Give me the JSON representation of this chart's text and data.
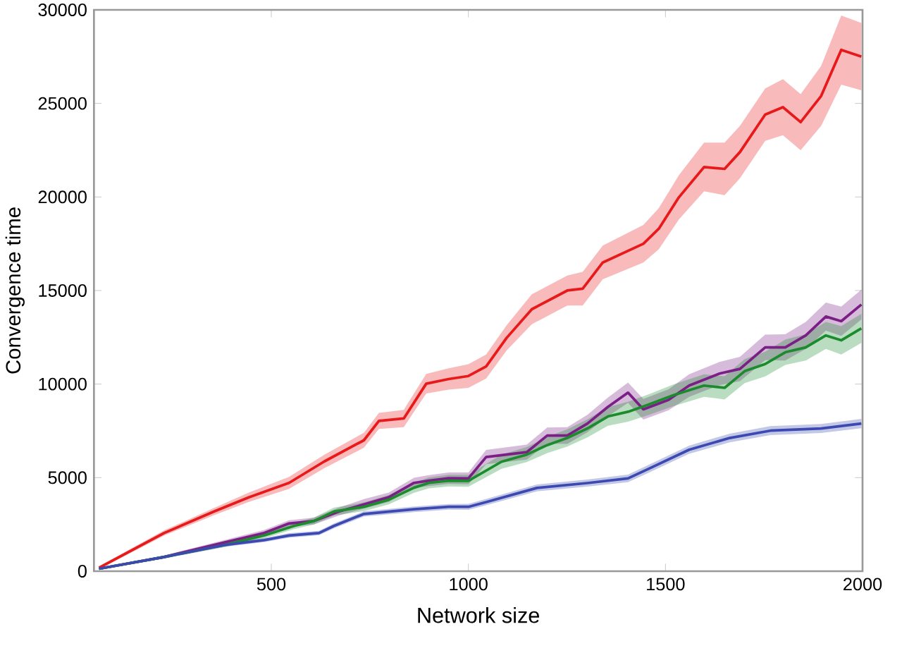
{
  "chart_data": {
    "type": "line",
    "xlabel": "Network size",
    "ylabel": "Convergence time",
    "xlim": [
      50,
      2000
    ],
    "ylim": [
      0,
      30000
    ],
    "xticks": [
      500,
      1000,
      1500,
      2000
    ],
    "yticks": [
      0,
      5000,
      10000,
      15000,
      20000,
      25000,
      30000
    ],
    "grid": false,
    "marker": "none",
    "line_style": "solid",
    "series": [
      {
        "color": "#e8191b",
        "x": [
          63,
          228,
          355,
          443,
          545,
          634,
          735,
          773,
          836,
          893,
          950,
          1000,
          1045,
          1097,
          1161,
          1251,
          1290,
          1341,
          1444,
          1483,
          1534,
          1598,
          1650,
          1689,
          1753,
          1798,
          1843,
          1895,
          1946,
          1997
        ],
        "values": [
          180,
          2040,
          3190,
          3950,
          4720,
          5860,
          7000,
          8030,
          8160,
          10020,
          10270,
          10430,
          10940,
          12470,
          14000,
          15000,
          15100,
          16500,
          17500,
          18300,
          19980,
          21600,
          21500,
          22400,
          24400,
          24800,
          24000,
          25400,
          27860,
          27500
        ],
        "lower": [
          100,
          1900,
          3000,
          3700,
          4400,
          5500,
          6600,
          7600,
          7700,
          9500,
          9700,
          9800,
          10300,
          11800,
          13200,
          14200,
          14200,
          15600,
          16500,
          17200,
          18800,
          20300,
          20100,
          21000,
          23000,
          23300,
          22500,
          23800,
          26000,
          25700
        ],
        "upper": [
          260,
          2180,
          3380,
          4200,
          5040,
          6220,
          7400,
          8460,
          8620,
          10540,
          10840,
          11060,
          11580,
          13140,
          14800,
          15800,
          16000,
          17400,
          18500,
          19400,
          21160,
          22900,
          22900,
          23800,
          25800,
          26300,
          25500,
          27000,
          29700,
          29300
        ]
      },
      {
        "color": "#7b1f86",
        "x": [
          63,
          228,
          380,
          482,
          545,
          608,
          672,
          735,
          798,
          862,
          900,
          950,
          1000,
          1045,
          1148,
          1200,
          1251,
          1302,
          1354,
          1405,
          1444,
          1508,
          1560,
          1637,
          1689,
          1753,
          1804,
          1856,
          1907,
          1946,
          1997
        ],
        "values": [
          130,
          760,
          1530,
          2040,
          2550,
          2680,
          3190,
          3570,
          3950,
          4720,
          4840,
          4970,
          4960,
          6100,
          6360,
          7250,
          7250,
          7890,
          8780,
          9540,
          8650,
          9160,
          9920,
          10560,
          10810,
          11960,
          11960,
          12600,
          13610,
          13360,
          14250
        ],
        "lower": [
          80,
          680,
          1400,
          1880,
          2380,
          2500,
          2980,
          3340,
          3700,
          4450,
          4550,
          4660,
          4640,
          5720,
          5960,
          6820,
          6800,
          7420,
          8280,
          9000,
          8100,
          8600,
          9320,
          9940,
          10160,
          11280,
          11260,
          11880,
          12860,
          12580,
          13450
        ],
        "upper": [
          180,
          840,
          1660,
          2200,
          2720,
          2860,
          3400,
          3850,
          4200,
          4990,
          5130,
          5280,
          5280,
          6480,
          6760,
          7680,
          7700,
          8360,
          9280,
          10080,
          9200,
          9720,
          10520,
          11180,
          11460,
          12640,
          12660,
          13320,
          14360,
          14140,
          15050
        ]
      },
      {
        "color": "#1c8b2e",
        "x": [
          63,
          228,
          380,
          482,
          558,
          608,
          659,
          735,
          798,
          862,
          900,
          950,
          1000,
          1084,
          1148,
          1200,
          1251,
          1302,
          1354,
          1405,
          1457,
          1521,
          1598,
          1650,
          1701,
          1753,
          1804,
          1856,
          1907,
          1946,
          1997
        ],
        "values": [
          130,
          760,
          1400,
          1910,
          2420,
          2680,
          3190,
          3440,
          3820,
          4460,
          4720,
          4840,
          4830,
          5850,
          6230,
          6740,
          7120,
          7630,
          8270,
          8520,
          8900,
          9410,
          9920,
          9800,
          10690,
          11070,
          11700,
          11960,
          12600,
          12340,
          12980
        ],
        "lower": [
          80,
          680,
          1280,
          1760,
          2250,
          2500,
          2980,
          3210,
          3570,
          4190,
          4430,
          4530,
          4510,
          5470,
          5830,
          6310,
          6660,
          7150,
          7770,
          7990,
          8350,
          8830,
          9320,
          9180,
          10050,
          10410,
          11020,
          11260,
          11880,
          11580,
          12200
        ],
        "upper": [
          180,
          840,
          1520,
          2060,
          2590,
          2860,
          3400,
          3670,
          4070,
          4730,
          5010,
          5150,
          5150,
          6230,
          6630,
          7170,
          7580,
          8110,
          8770,
          9050,
          9450,
          9990,
          10520,
          10420,
          11330,
          11730,
          12380,
          12660,
          13320,
          13100,
          13760
        ]
      },
      {
        "color": "#3b49b1",
        "x": [
          63,
          228,
          380,
          482,
          545,
          621,
          659,
          735,
          862,
          950,
          1000,
          1045,
          1174,
          1302,
          1405,
          1457,
          1560,
          1663,
          1766,
          1895,
          1997
        ],
        "values": [
          130,
          760,
          1400,
          1660,
          1910,
          2040,
          2420,
          3060,
          3310,
          3440,
          3440,
          3690,
          4450,
          4710,
          4960,
          5470,
          6490,
          7120,
          7510,
          7630,
          7890
        ],
        "lower": [
          80,
          690,
          1300,
          1550,
          1790,
          1920,
          2290,
          2920,
          3160,
          3290,
          3280,
          3520,
          4270,
          4520,
          4760,
          5260,
          6270,
          6890,
          7270,
          7390,
          7640
        ],
        "upper": [
          180,
          830,
          1500,
          1770,
          2030,
          2160,
          2550,
          3200,
          3460,
          3590,
          3600,
          3860,
          4630,
          4900,
          5160,
          5680,
          6710,
          7350,
          7750,
          7870,
          8140
        ]
      }
    ]
  }
}
